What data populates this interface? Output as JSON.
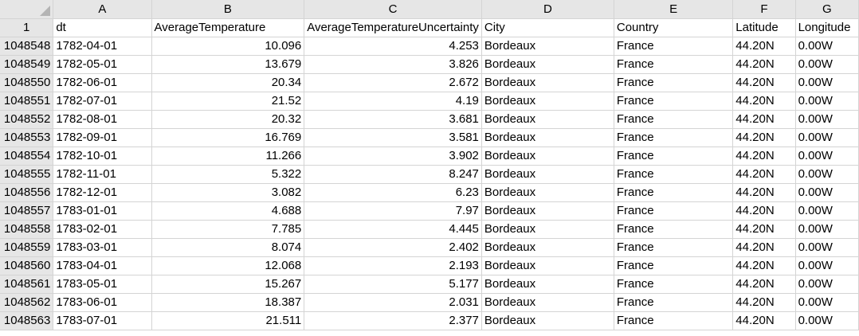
{
  "columns": [
    "A",
    "B",
    "C",
    "D",
    "E",
    "F",
    "G"
  ],
  "header_row": {
    "row_number": "1",
    "cells": [
      "dt",
      "AverageTemperature",
      "AverageTemperatureUncertainty",
      "City",
      "Country",
      "Latitude",
      "Longitude"
    ]
  },
  "rows": [
    {
      "n": "1048548",
      "dt": "1782-04-01",
      "avg": "10.096",
      "unc": "4.253",
      "city": "Bordeaux",
      "country": "France",
      "lat": "44.20N",
      "lon": "0.00W"
    },
    {
      "n": "1048549",
      "dt": "1782-05-01",
      "avg": "13.679",
      "unc": "3.826",
      "city": "Bordeaux",
      "country": "France",
      "lat": "44.20N",
      "lon": "0.00W"
    },
    {
      "n": "1048550",
      "dt": "1782-06-01",
      "avg": "20.34",
      "unc": "2.672",
      "city": "Bordeaux",
      "country": "France",
      "lat": "44.20N",
      "lon": "0.00W"
    },
    {
      "n": "1048551",
      "dt": "1782-07-01",
      "avg": "21.52",
      "unc": "4.19",
      "city": "Bordeaux",
      "country": "France",
      "lat": "44.20N",
      "lon": "0.00W"
    },
    {
      "n": "1048552",
      "dt": "1782-08-01",
      "avg": "20.32",
      "unc": "3.681",
      "city": "Bordeaux",
      "country": "France",
      "lat": "44.20N",
      "lon": "0.00W"
    },
    {
      "n": "1048553",
      "dt": "1782-09-01",
      "avg": "16.769",
      "unc": "3.581",
      "city": "Bordeaux",
      "country": "France",
      "lat": "44.20N",
      "lon": "0.00W"
    },
    {
      "n": "1048554",
      "dt": "1782-10-01",
      "avg": "11.266",
      "unc": "3.902",
      "city": "Bordeaux",
      "country": "France",
      "lat": "44.20N",
      "lon": "0.00W"
    },
    {
      "n": "1048555",
      "dt": "1782-11-01",
      "avg": "5.322",
      "unc": "8.247",
      "city": "Bordeaux",
      "country": "France",
      "lat": "44.20N",
      "lon": "0.00W"
    },
    {
      "n": "1048556",
      "dt": "1782-12-01",
      "avg": "3.082",
      "unc": "6.23",
      "city": "Bordeaux",
      "country": "France",
      "lat": "44.20N",
      "lon": "0.00W"
    },
    {
      "n": "1048557",
      "dt": "1783-01-01",
      "avg": "4.688",
      "unc": "7.97",
      "city": "Bordeaux",
      "country": "France",
      "lat": "44.20N",
      "lon": "0.00W"
    },
    {
      "n": "1048558",
      "dt": "1783-02-01",
      "avg": "7.785",
      "unc": "4.445",
      "city": "Bordeaux",
      "country": "France",
      "lat": "44.20N",
      "lon": "0.00W"
    },
    {
      "n": "1048559",
      "dt": "1783-03-01",
      "avg": "8.074",
      "unc": "2.402",
      "city": "Bordeaux",
      "country": "France",
      "lat": "44.20N",
      "lon": "0.00W"
    },
    {
      "n": "1048560",
      "dt": "1783-04-01",
      "avg": "12.068",
      "unc": "2.193",
      "city": "Bordeaux",
      "country": "France",
      "lat": "44.20N",
      "lon": "0.00W"
    },
    {
      "n": "1048561",
      "dt": "1783-05-01",
      "avg": "15.267",
      "unc": "5.177",
      "city": "Bordeaux",
      "country": "France",
      "lat": "44.20N",
      "lon": "0.00W"
    },
    {
      "n": "1048562",
      "dt": "1783-06-01",
      "avg": "18.387",
      "unc": "2.031",
      "city": "Bordeaux",
      "country": "France",
      "lat": "44.20N",
      "lon": "0.00W"
    },
    {
      "n": "1048563",
      "dt": "1783-07-01",
      "avg": "21.511",
      "unc": "2.377",
      "city": "Bordeaux",
      "country": "France",
      "lat": "44.20N",
      "lon": "0.00W"
    }
  ]
}
